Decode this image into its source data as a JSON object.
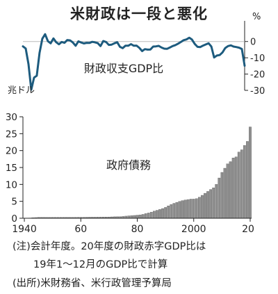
{
  "title": "米財政は一段と悪化",
  "notes": [
    "(注)会計年度。20年度の財政赤字GDP比は",
    "19年1〜12月のGDP比で計算",
    "(出所)米財務省、米行政管理予算局"
  ],
  "chart_data": [
    {
      "type": "line",
      "title": "財政収支GDP比",
      "unit_label": "%",
      "ylim": [
        -30,
        5
      ],
      "yticks": [
        0,
        -10,
        -20,
        -30
      ],
      "ytick_labels": [
        "0",
        "-10",
        "-20",
        "-30"
      ],
      "xlim": [
        1940,
        2020
      ],
      "line_color": "#1d5b7e",
      "x": [
        1940,
        1941,
        1942,
        1943,
        1944,
        1945,
        1946,
        1947,
        1948,
        1949,
        1950,
        1951,
        1952,
        1953,
        1954,
        1955,
        1956,
        1957,
        1958,
        1959,
        1960,
        1961,
        1962,
        1963,
        1964,
        1965,
        1966,
        1967,
        1968,
        1969,
        1970,
        1971,
        1972,
        1973,
        1974,
        1975,
        1976,
        1977,
        1978,
        1979,
        1980,
        1981,
        1982,
        1983,
        1984,
        1985,
        1986,
        1987,
        1988,
        1989,
        1990,
        1991,
        1992,
        1993,
        1994,
        1995,
        1996,
        1997,
        1998,
        1999,
        2000,
        2001,
        2002,
        2003,
        2004,
        2005,
        2006,
        2007,
        2008,
        2009,
        2010,
        2011,
        2012,
        2013,
        2014,
        2015,
        2016,
        2017,
        2018,
        2019,
        2020
      ],
      "y": [
        -3,
        -4.3,
        -13.9,
        -29.6,
        -22.2,
        -21,
        -7,
        1.7,
        4.5,
        0.2,
        -1.1,
        1.9,
        -0.4,
        -1.7,
        -0.3,
        -0.8,
        0.9,
        0.7,
        -0.6,
        -2.6,
        0.1,
        -0.6,
        -1.2,
        -0.8,
        -0.9,
        -0.2,
        -0.5,
        -1,
        -2.8,
        0.3,
        -0.3,
        -2.1,
        -1.9,
        -1.1,
        -0.4,
        -3.3,
        -4.1,
        -2.6,
        -2.6,
        -1.6,
        -2.6,
        -2.5,
        -3.9,
        -5.9,
        -4.7,
        -5,
        -4.9,
        -3.1,
        -3,
        -2.7,
        -3.7,
        -4.4,
        -4.5,
        -3.7,
        -2.8,
        -2.2,
        -1.3,
        -0.3,
        0.8,
        1.3,
        2.3,
        1.2,
        -1.5,
        -3.3,
        -3.4,
        -2.5,
        -1.8,
        -1.1,
        -3.1,
        -9.8,
        -8.6,
        -8.3,
        -6.7,
        -4,
        -2.8,
        -2.4,
        -3.1,
        -3.4,
        -3.8,
        -4.6,
        -14.9
      ]
    },
    {
      "type": "bar",
      "title": "政府債務",
      "unit_label": "兆ドル",
      "ylim": [
        0,
        30
      ],
      "yticks": [
        0,
        5,
        10,
        15,
        20,
        25,
        30
      ],
      "ytick_labels": [
        "0",
        "5",
        "10",
        "15",
        "20",
        "25",
        "30"
      ],
      "xtick_labels": [
        "1940",
        "60",
        "80",
        "2000",
        "20"
      ],
      "xtick_values": [
        1940,
        1960,
        1980,
        2000,
        2020
      ],
      "bar_color": "#8f8f8f",
      "x": [
        1940,
        1941,
        1942,
        1943,
        1944,
        1945,
        1946,
        1947,
        1948,
        1949,
        1950,
        1951,
        1952,
        1953,
        1954,
        1955,
        1956,
        1957,
        1958,
        1959,
        1960,
        1961,
        1962,
        1963,
        1964,
        1965,
        1966,
        1967,
        1968,
        1969,
        1970,
        1971,
        1972,
        1973,
        1974,
        1975,
        1976,
        1977,
        1978,
        1979,
        1980,
        1981,
        1982,
        1983,
        1984,
        1985,
        1986,
        1987,
        1988,
        1989,
        1990,
        1991,
        1992,
        1993,
        1994,
        1995,
        1996,
        1997,
        1998,
        1999,
        2000,
        2001,
        2002,
        2003,
        2004,
        2005,
        2006,
        2007,
        2008,
        2009,
        2010,
        2011,
        2012,
        2013,
        2014,
        2015,
        2016,
        2017,
        2018,
        2019,
        2020
      ],
      "values": [
        0.05,
        0.06,
        0.08,
        0.14,
        0.2,
        0.26,
        0.27,
        0.26,
        0.25,
        0.25,
        0.26,
        0.26,
        0.26,
        0.27,
        0.27,
        0.27,
        0.27,
        0.27,
        0.28,
        0.29,
        0.29,
        0.29,
        0.3,
        0.31,
        0.32,
        0.32,
        0.33,
        0.34,
        0.37,
        0.37,
        0.38,
        0.41,
        0.44,
        0.47,
        0.48,
        0.54,
        0.63,
        0.71,
        0.78,
        0.83,
        0.91,
        1.0,
        1.14,
        1.37,
        1.56,
        1.82,
        2.13,
        2.35,
        2.6,
        2.87,
        3.21,
        3.67,
        4.06,
        4.41,
        4.69,
        4.97,
        5.22,
        5.41,
        5.53,
        5.66,
        5.67,
        5.81,
        6.23,
        6.78,
        7.38,
        7.93,
        8.51,
        9.01,
        10.02,
        11.91,
        13.56,
        14.79,
        16.07,
        16.74,
        17.82,
        18.15,
        19.57,
        20.24,
        21.52,
        22.72,
        27.0
      ]
    }
  ]
}
